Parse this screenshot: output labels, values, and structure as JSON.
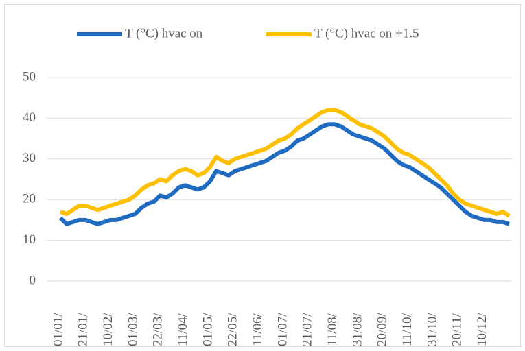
{
  "chart_data": {
    "type": "line",
    "categories": [
      "01/01/",
      null,
      null,
      null,
      "21/01/",
      null,
      null,
      null,
      "10/02/",
      null,
      null,
      null,
      "01/03/",
      null,
      null,
      null,
      "22/03/",
      null,
      null,
      null,
      "11/04/",
      null,
      null,
      null,
      "01/05/",
      null,
      null,
      null,
      "22/05/",
      null,
      null,
      null,
      "11/06/",
      null,
      null,
      null,
      "01/07/",
      null,
      null,
      null,
      "21/07/",
      null,
      null,
      null,
      "11/08/",
      null,
      null,
      null,
      "31/08/",
      null,
      null,
      null,
      "20/09/",
      null,
      null,
      null,
      "11/10/",
      null,
      null,
      null,
      "31/10/",
      null,
      null,
      null,
      "20/11/",
      null,
      null,
      null,
      "10/12/",
      null,
      null,
      null,
      null
    ],
    "series": [
      {
        "name": "T (°C) hvac on",
        "color": "#1f6bc1",
        "values": [
          15.5,
          14,
          14.5,
          15,
          15,
          14.5,
          14,
          14.5,
          15,
          15,
          15.5,
          16,
          16.5,
          18,
          19,
          19.5,
          21,
          20.5,
          21.5,
          23,
          23.5,
          23,
          22.5,
          23,
          24.5,
          27,
          26.5,
          26,
          27,
          27.5,
          28,
          28.5,
          29,
          29.5,
          30.5,
          31.5,
          32,
          33,
          34.5,
          35,
          36,
          37,
          38,
          38.5,
          38.5,
          38,
          37,
          36,
          35.5,
          35,
          34.5,
          33.5,
          32.5,
          31,
          29.5,
          28.5,
          28,
          27,
          26,
          25,
          24,
          23,
          21.5,
          20,
          18.5,
          17,
          16,
          15.5,
          15,
          15,
          14.5,
          14.5,
          14
        ]
      },
      {
        "name": "T (°C) hvac on +1.5",
        "color": "#ffc000",
        "values": [
          17,
          16.5,
          17.5,
          18.5,
          18.5,
          18,
          17.5,
          18,
          18.5,
          19,
          19.5,
          20,
          21,
          22.5,
          23.5,
          24,
          25,
          24.5,
          26,
          27,
          27.5,
          27,
          26,
          26.5,
          28,
          30.5,
          29.5,
          29,
          30,
          30.5,
          31,
          31.5,
          32,
          32.5,
          33.5,
          34.5,
          35,
          36,
          37.5,
          38.5,
          39.5,
          40.5,
          41.5,
          42,
          42,
          41.5,
          40.5,
          39.5,
          38.5,
          38,
          37.5,
          36.5,
          35.5,
          34,
          32.5,
          31.5,
          31,
          30,
          29,
          28,
          26.5,
          25,
          23.5,
          21.5,
          20,
          19,
          18.5,
          18,
          17.5,
          17,
          16.5,
          17,
          16
        ]
      }
    ],
    "ylim": [
      0,
      50
    ],
    "yticks": [
      0,
      10,
      20,
      30,
      40,
      50
    ],
    "grid": true,
    "legend": "top"
  }
}
